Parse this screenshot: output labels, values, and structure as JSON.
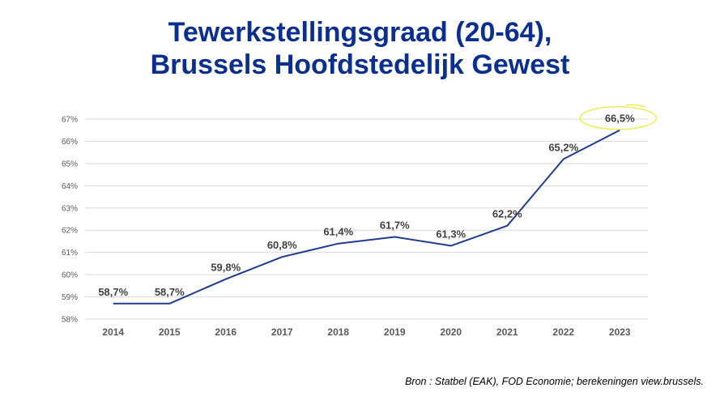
{
  "title_line1": "Tewerkstellingsgraad (20-64),",
  "title_line2": "Brussels Hoofdstedelijk Gewest",
  "source": "Bron : Statbel (EAK), FOD Economie; berekeningen view.brussels.",
  "colors": {
    "title": "#0a2f8f",
    "line": "#1f3c8f",
    "grid": "#d9d9d9",
    "axis_text": "#595959",
    "data_label": "#404040",
    "highlight": "#ecec5a"
  },
  "chart_data": {
    "type": "line",
    "title": "Tewerkstellingsgraad (20-64), Brussels Hoofdstedelijk Gewest",
    "xlabel": "",
    "ylabel": "",
    "categories": [
      "2014",
      "2015",
      "2016",
      "2017",
      "2018",
      "2019",
      "2020",
      "2021",
      "2022",
      "2023"
    ],
    "series": [
      {
        "values": [
          58.7,
          58.7,
          59.8,
          60.8,
          61.4,
          61.7,
          61.3,
          62.2,
          65.2,
          66.5
        ],
        "labels": [
          "58,7%",
          "58,7%",
          "59,8%",
          "60,8%",
          "61,4%",
          "61,7%",
          "61,3%",
          "62,2%",
          "65,2%",
          "66,5%"
        ]
      }
    ],
    "ylim": [
      58,
      67
    ],
    "yticks": [
      "58%",
      "59%",
      "60%",
      "61%",
      "62%",
      "63%",
      "64%",
      "65%",
      "66%",
      "67%"
    ],
    "grid": true,
    "highlighted_point": "2023"
  }
}
